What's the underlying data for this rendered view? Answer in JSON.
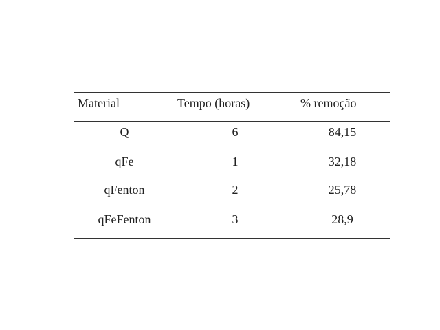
{
  "table": {
    "header": [
      "Material",
      "Tempo (horas)",
      "% remoção"
    ],
    "rows": [
      [
        "Q",
        "6",
        "84,15"
      ],
      [
        "qFe",
        "1",
        "32,18"
      ],
      [
        "qFenton",
        "2",
        "25,78"
      ],
      [
        "qFeFenton",
        "3",
        "28,9"
      ]
    ]
  }
}
